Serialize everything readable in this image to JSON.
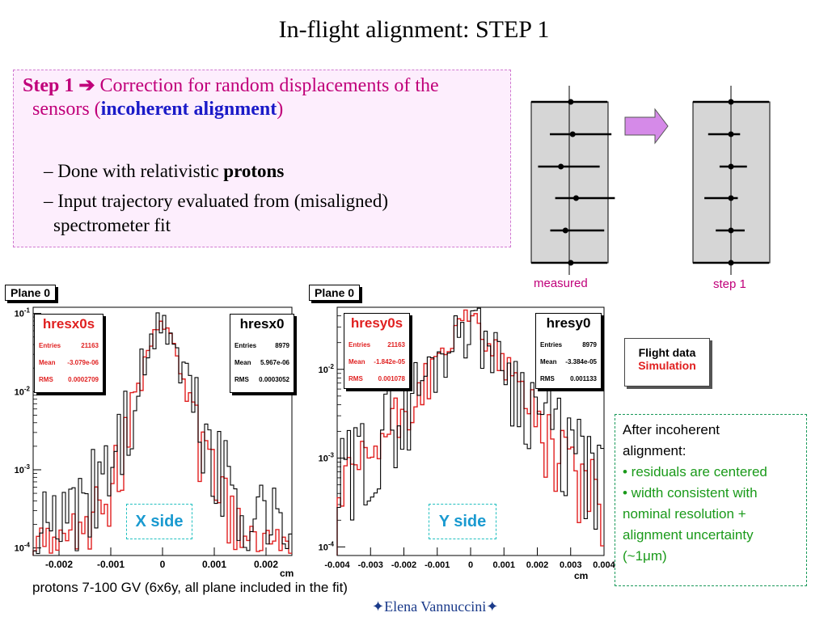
{
  "title": "In-flight alignment: STEP 1",
  "step": {
    "label": "Step 1",
    "arrow": "➔",
    "line1": "Correction for random displacements of the",
    "line2_pre": "sensors (",
    "line2_bold": "incoherent alignment",
    "line2_post": ")",
    "bullets": [
      {
        "dash": "–",
        "text": "Done with relativistic ",
        "bold": "protons"
      },
      {
        "dash": "–",
        "text": "Input trajectory evaluated from (misaligned)",
        "text2": "spectrometer fit"
      }
    ]
  },
  "diagram": {
    "measured_label": "measured",
    "step1_label": "step 1",
    "measured_points": [
      [
        0.04,
        -0.15,
        1.7
      ],
      [
        0.09,
        -0.6,
        1.7
      ],
      [
        -0.22,
        -0.6,
        1.7
      ],
      [
        0.18,
        -0.55,
        1.7
      ],
      [
        -0.1,
        -0.4,
        1.7
      ],
      [
        0.04,
        -0.15,
        1.7
      ]
    ],
    "step1_points": [
      [
        0,
        0,
        1.7
      ],
      [
        0,
        -0.6,
        0.4
      ],
      [
        0,
        -0.3,
        0.7
      ],
      [
        0,
        -0.7,
        0.3
      ],
      [
        0,
        -0.4,
        0.6
      ],
      [
        0,
        0,
        1.7
      ]
    ]
  },
  "plots": [
    {
      "plane": "Plane 0",
      "side_label": "X side",
      "stat_red": {
        "name": "hresx0s",
        "entries_label": "Entries",
        "entries": "21163",
        "mean_label": "Mean",
        "mean": "-3.079e-06",
        "rms_label": "RMS",
        "rms": "0.0002709"
      },
      "stat_black": {
        "name": "hresx0",
        "entries_label": "Entries",
        "entries": "8979",
        "mean_label": "Mean",
        "mean": "5.967e-06",
        "rms_label": "RMS",
        "rms": "0.0003052"
      },
      "xlabel": "cm"
    },
    {
      "plane": "Plane 0",
      "side_label": "Y side",
      "stat_red": {
        "name": "hresy0s",
        "entries_label": "Entries",
        "entries": "21163",
        "mean_label": "Mean",
        "mean": "-1.842e-05",
        "rms_label": "RMS",
        "rms": "0.001078"
      },
      "stat_black": {
        "name": "hresy0",
        "entries_label": "Entries",
        "entries": "8979",
        "mean_label": "Mean",
        "mean": "-3.384e-05",
        "rms_label": "RMS",
        "rms": "0.001133"
      },
      "xlabel": "cm"
    }
  ],
  "legend": {
    "flight": "Flight data",
    "simulation": "Simulation"
  },
  "note": {
    "line1": "After incoherent",
    "line2": "alignment:",
    "line3": "• residuals are centered",
    "line4": "• width consistent with",
    "line5": "nominal resolution  +",
    "line6": "alignment uncertainty",
    "line7_pre": "(~1",
    "line7_mu": "μ",
    "line7_post": "m)"
  },
  "footer": "protons 7-100 GV  (6x6y, all plane included in the fit)",
  "author": {
    "star": "✦",
    "name": "Elena Vannuccini"
  },
  "chart_data": [
    {
      "type": "histogram",
      "xlabel": "cm",
      "xlim": [
        -0.0025,
        0.0025
      ],
      "ylim": [
        8e-05,
        0.12
      ],
      "yscale": "log",
      "x_ticks": [
        "-0.002",
        "-0.001",
        "0",
        "0.001",
        "0.002"
      ],
      "y_ticks": [
        "10^-1",
        "10^-2",
        "10^-3",
        "10^-4"
      ],
      "series": [
        {
          "name": "hresx0",
          "color": "#000000",
          "mean": 5.967e-06,
          "rms": 0.0003052,
          "entries": 8979
        },
        {
          "name": "hresx0s",
          "color": "#e02020",
          "mean": -3.079e-06,
          "rms": 0.0002709,
          "entries": 21163
        }
      ]
    },
    {
      "type": "histogram",
      "xlabel": "cm",
      "xlim": [
        -0.004,
        0.004
      ],
      "ylim": [
        8e-05,
        0.05
      ],
      "yscale": "log",
      "x_ticks": [
        "-0.004",
        "-0.003",
        "-0.002",
        "-0.001",
        "0",
        "0.001",
        "0.002",
        "0.003",
        "0.004"
      ],
      "y_ticks": [
        "10^-2",
        "10^-3",
        "10^-4"
      ],
      "series": [
        {
          "name": "hresy0",
          "color": "#000000",
          "mean": -3.384e-05,
          "rms": 0.001133,
          "entries": 8979
        },
        {
          "name": "hresy0s",
          "color": "#e02020",
          "mean": -1.842e-05,
          "rms": 0.001078,
          "entries": 21163
        }
      ]
    }
  ]
}
